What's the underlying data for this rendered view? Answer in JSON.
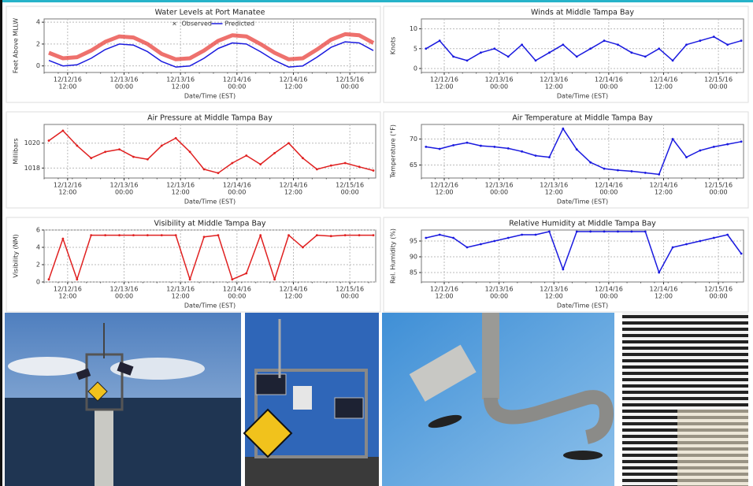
{
  "chart_data": [
    {
      "type": "line",
      "title": "Water Levels at Port Manatee",
      "x_label": "Date/Time (EST)",
      "y_label": "Feet Above MLLW",
      "x": [
        "2016-12-12T08:00",
        "2016-12-12T11:00",
        "2016-12-12T14:00",
        "2016-12-12T17:00",
        "2016-12-12T20:00",
        "2016-12-12T23:00",
        "2016-12-13T02:00",
        "2016-12-13T05:00",
        "2016-12-13T08:00",
        "2016-12-13T11:00",
        "2016-12-13T14:00",
        "2016-12-13T17:00",
        "2016-12-13T20:00",
        "2016-12-13T23:00",
        "2016-12-14T02:00",
        "2016-12-14T05:00",
        "2016-12-14T08:00",
        "2016-12-14T11:00",
        "2016-12-14T14:00",
        "2016-12-14T17:00",
        "2016-12-14T20:00",
        "2016-12-14T23:00",
        "2016-12-15T02:00",
        "2016-12-15T05:00"
      ],
      "series": [
        {
          "name": "Observed",
          "color": "#e8413c",
          "values": [
            1.2,
            0.7,
            0.8,
            1.4,
            2.2,
            2.7,
            2.6,
            2.0,
            1.1,
            0.6,
            0.7,
            1.4,
            2.3,
            2.8,
            2.7,
            2.0,
            1.2,
            0.6,
            0.7,
            1.5,
            2.4,
            2.9,
            2.8,
            2.1
          ]
        },
        {
          "name": "Predicted",
          "color": "#1a1adf",
          "values": [
            0.5,
            0.0,
            0.1,
            0.7,
            1.5,
            2.0,
            1.9,
            1.3,
            0.4,
            -0.1,
            0.0,
            0.7,
            1.6,
            2.1,
            2.0,
            1.3,
            0.5,
            -0.1,
            0.0,
            0.8,
            1.7,
            2.2,
            2.1,
            1.4
          ]
        }
      ],
      "xlim": [
        "2016-12-12T07:00",
        "2016-12-15T05:30"
      ],
      "xticks": [
        {
          "value": "2016-12-12T12:00",
          "label": [
            "12/12/16",
            "12:00"
          ]
        },
        {
          "value": "2016-12-13T00:00",
          "label": [
            "12/13/16",
            "00:00"
          ]
        },
        {
          "value": "2016-12-13T12:00",
          "label": [
            "12/13/16",
            "12:00"
          ]
        },
        {
          "value": "2016-12-14T00:00",
          "label": [
            "12/14/16",
            "00:00"
          ]
        },
        {
          "value": "2016-12-14T12:00",
          "label": [
            "12/14/16",
            "12:00"
          ]
        },
        {
          "value": "2016-12-15T00:00",
          "label": [
            "12/15/16",
            "00:00"
          ]
        }
      ],
      "ylim": [
        -0.6,
        4.3
      ],
      "yticks": [
        0,
        2,
        4
      ],
      "grid": true
    },
    {
      "type": "line",
      "title": "Winds at Middle Tampa Bay",
      "x_label": "Date/Time (EST)",
      "y_label": "Knots",
      "x": [
        "2016-12-12T08:00",
        "2016-12-12T11:00",
        "2016-12-12T14:00",
        "2016-12-12T17:00",
        "2016-12-12T20:00",
        "2016-12-12T23:00",
        "2016-12-13T02:00",
        "2016-12-13T05:00",
        "2016-12-13T08:00",
        "2016-12-13T11:00",
        "2016-12-13T14:00",
        "2016-12-13T17:00",
        "2016-12-13T20:00",
        "2016-12-13T23:00",
        "2016-12-14T02:00",
        "2016-12-14T05:00",
        "2016-12-14T08:00",
        "2016-12-14T11:00",
        "2016-12-14T14:00",
        "2016-12-14T17:00",
        "2016-12-14T20:00",
        "2016-12-14T23:00",
        "2016-12-15T02:00",
        "2016-12-15T05:00"
      ],
      "values": [
        5,
        7,
        3,
        2,
        4,
        5,
        3,
        6,
        2,
        4,
        6,
        3,
        5,
        7,
        6,
        4,
        3,
        5,
        2,
        6,
        7,
        8,
        6,
        7
      ],
      "color": "#1a1adf",
      "xlim": [
        "2016-12-12T07:00",
        "2016-12-15T05:30"
      ],
      "xticks": [
        {
          "value": "2016-12-12T12:00",
          "label": [
            "12/12/16",
            "12:00"
          ]
        },
        {
          "value": "2016-12-13T00:00",
          "label": [
            "12/13/16",
            "00:00"
          ]
        },
        {
          "value": "2016-12-13T12:00",
          "label": [
            "12/13/16",
            "12:00"
          ]
        },
        {
          "value": "2016-12-14T00:00",
          "label": [
            "12/14/16",
            "00:00"
          ]
        },
        {
          "value": "2016-12-14T12:00",
          "label": [
            "12/14/16",
            "12:00"
          ]
        },
        {
          "value": "2016-12-15T00:00",
          "label": [
            "12/15/16",
            "00:00"
          ]
        }
      ],
      "ylim": [
        -1,
        12.5
      ],
      "yticks": [
        0,
        5,
        10
      ],
      "grid": true
    },
    {
      "type": "line",
      "title": "Air Pressure at Middle Tampa Bay",
      "x_label": "Date/Time (EST)",
      "y_label": "Millibars",
      "x": [
        "2016-12-12T08:00",
        "2016-12-12T11:00",
        "2016-12-12T14:00",
        "2016-12-12T17:00",
        "2016-12-12T20:00",
        "2016-12-12T23:00",
        "2016-12-13T02:00",
        "2016-12-13T05:00",
        "2016-12-13T08:00",
        "2016-12-13T11:00",
        "2016-12-13T14:00",
        "2016-12-13T17:00",
        "2016-12-13T20:00",
        "2016-12-13T23:00",
        "2016-12-14T02:00",
        "2016-12-14T05:00",
        "2016-12-14T08:00",
        "2016-12-14T11:00",
        "2016-12-14T14:00",
        "2016-12-14T17:00",
        "2016-12-14T20:00",
        "2016-12-14T23:00",
        "2016-12-15T02:00",
        "2016-12-15T05:00"
      ],
      "values": [
        1020.2,
        1021.0,
        1019.8,
        1018.8,
        1019.3,
        1019.5,
        1018.9,
        1018.7,
        1019.8,
        1020.4,
        1019.3,
        1017.9,
        1017.6,
        1018.4,
        1019.0,
        1018.3,
        1019.2,
        1020.0,
        1018.8,
        1017.9,
        1018.2,
        1018.4,
        1018.1,
        1017.8
      ],
      "color": "#e02020",
      "xlim": [
        "2016-12-12T07:00",
        "2016-12-15T05:30"
      ],
      "xticks": [
        {
          "value": "2016-12-12T12:00",
          "label": [
            "12/12/16",
            "12:00"
          ]
        },
        {
          "value": "2016-12-13T00:00",
          "label": [
            "12/13/16",
            "00:00"
          ]
        },
        {
          "value": "2016-12-13T12:00",
          "label": [
            "12/13/16",
            "12:00"
          ]
        },
        {
          "value": "2016-12-14T00:00",
          "label": [
            "12/14/16",
            "00:00"
          ]
        },
        {
          "value": "2016-12-14T12:00",
          "label": [
            "12/14/16",
            "12:00"
          ]
        },
        {
          "value": "2016-12-15T00:00",
          "label": [
            "12/15/16",
            "00:00"
          ]
        }
      ],
      "ylim": [
        1017.2,
        1021.5
      ],
      "yticks": [
        1018,
        1020
      ],
      "grid": true
    },
    {
      "type": "line",
      "title": "Air Temperature at Middle Tampa Bay",
      "x_label": "Date/Time (EST)",
      "y_label": "Temperature (°F)",
      "x": [
        "2016-12-12T08:00",
        "2016-12-12T11:00",
        "2016-12-12T14:00",
        "2016-12-12T17:00",
        "2016-12-12T20:00",
        "2016-12-12T23:00",
        "2016-12-13T02:00",
        "2016-12-13T05:00",
        "2016-12-13T08:00",
        "2016-12-13T11:00",
        "2016-12-13T14:00",
        "2016-12-13T17:00",
        "2016-12-13T20:00",
        "2016-12-13T23:00",
        "2016-12-14T02:00",
        "2016-12-14T05:00",
        "2016-12-14T08:00",
        "2016-12-14T11:00",
        "2016-12-14T14:00",
        "2016-12-14T17:00",
        "2016-12-14T20:00",
        "2016-12-14T23:00",
        "2016-12-15T02:00",
        "2016-12-15T05:00"
      ],
      "values": [
        68.5,
        68.1,
        68.8,
        69.3,
        68.7,
        68.5,
        68.2,
        67.6,
        66.8,
        66.5,
        72.0,
        68.0,
        65.5,
        64.3,
        64.0,
        63.8,
        63.5,
        63.2,
        70.0,
        66.5,
        67.8,
        68.5,
        69.0,
        69.5
      ],
      "color": "#1a1adf",
      "xlim": [
        "2016-12-12T07:00",
        "2016-12-15T05:30"
      ],
      "xticks": [
        {
          "value": "2016-12-12T12:00",
          "label": [
            "12/12/16",
            "12:00"
          ]
        },
        {
          "value": "2016-12-13T00:00",
          "label": [
            "12/13/16",
            "00:00"
          ]
        },
        {
          "value": "2016-12-13T12:00",
          "label": [
            "12/13/16",
            "12:00"
          ]
        },
        {
          "value": "2016-12-14T00:00",
          "label": [
            "12/14/16",
            "00:00"
          ]
        },
        {
          "value": "2016-12-14T12:00",
          "label": [
            "12/14/16",
            "12:00"
          ]
        },
        {
          "value": "2016-12-15T00:00",
          "label": [
            "12/15/16",
            "00:00"
          ]
        }
      ],
      "ylim": [
        62.5,
        72.8
      ],
      "yticks": [
        65,
        70
      ],
      "grid": true
    },
    {
      "type": "line",
      "title": "Visibility at Middle Tampa Bay",
      "x_label": "Date/Time (EST)",
      "y_label": "Visibility (NM)",
      "x": [
        "2016-12-12T08:00",
        "2016-12-12T11:00",
        "2016-12-12T14:00",
        "2016-12-12T17:00",
        "2016-12-12T20:00",
        "2016-12-12T23:00",
        "2016-12-13T02:00",
        "2016-12-13T05:00",
        "2016-12-13T08:00",
        "2016-12-13T11:00",
        "2016-12-13T14:00",
        "2016-12-13T17:00",
        "2016-12-13T20:00",
        "2016-12-13T23:00",
        "2016-12-14T02:00",
        "2016-12-14T05:00",
        "2016-12-14T08:00",
        "2016-12-14T11:00",
        "2016-12-14T14:00",
        "2016-12-14T17:00",
        "2016-12-14T20:00",
        "2016-12-14T23:00",
        "2016-12-15T02:00",
        "2016-12-15T05:00"
      ],
      "values": [
        0.3,
        5.0,
        0.3,
        5.4,
        5.4,
        5.4,
        5.4,
        5.4,
        5.4,
        5.4,
        0.3,
        5.2,
        5.4,
        0.3,
        1.0,
        5.4,
        0.3,
        5.4,
        4.0,
        5.4,
        5.3,
        5.4,
        5.4,
        5.4
      ],
      "color": "#e02020",
      "xlim": [
        "2016-12-12T07:00",
        "2016-12-15T05:30"
      ],
      "xticks": [
        {
          "value": "2016-12-12T12:00",
          "label": [
            "12/12/16",
            "12:00"
          ]
        },
        {
          "value": "2016-12-13T00:00",
          "label": [
            "12/13/16",
            "00:00"
          ]
        },
        {
          "value": "2016-12-13T12:00",
          "label": [
            "12/13/16",
            "12:00"
          ]
        },
        {
          "value": "2016-12-14T00:00",
          "label": [
            "12/14/16",
            "00:00"
          ]
        },
        {
          "value": "2016-12-14T12:00",
          "label": [
            "12/14/16",
            "12:00"
          ]
        },
        {
          "value": "2016-12-15T00:00",
          "label": [
            "12/15/16",
            "00:00"
          ]
        }
      ],
      "ylim": [
        0,
        6
      ],
      "yticks": [
        0,
        2,
        4,
        6
      ],
      "grid": true
    },
    {
      "type": "line",
      "title": "Relative Humidity at Middle Tampa Bay",
      "x_label": "Date/Time (EST)",
      "y_label": "Rel. Humidity (%)",
      "x": [
        "2016-12-12T08:00",
        "2016-12-12T11:00",
        "2016-12-12T14:00",
        "2016-12-12T17:00",
        "2016-12-12T20:00",
        "2016-12-12T23:00",
        "2016-12-13T02:00",
        "2016-12-13T05:00",
        "2016-12-13T08:00",
        "2016-12-13T11:00",
        "2016-12-13T14:00",
        "2016-12-13T17:00",
        "2016-12-13T20:00",
        "2016-12-13T23:00",
        "2016-12-14T02:00",
        "2016-12-14T05:00",
        "2016-12-14T08:00",
        "2016-12-14T11:00",
        "2016-12-14T14:00",
        "2016-12-14T17:00",
        "2016-12-14T20:00",
        "2016-12-14T23:00",
        "2016-12-15T02:00",
        "2016-12-15T05:00"
      ],
      "values": [
        96,
        97,
        96,
        93,
        94,
        95,
        96,
        97,
        97,
        98,
        86,
        98,
        98,
        98,
        98,
        98,
        98,
        85,
        93,
        94,
        95,
        96,
        97,
        91
      ],
      "color": "#1a1adf",
      "xlim": [
        "2016-12-12T07:00",
        "2016-12-15T05:30"
      ],
      "xticks": [
        {
          "value": "2016-12-12T12:00",
          "label": [
            "12/12/16",
            "12:00"
          ]
        },
        {
          "value": "2016-12-13T00:00",
          "label": [
            "12/13/16",
            "00:00"
          ]
        },
        {
          "value": "2016-12-13T12:00",
          "label": [
            "12/13/16",
            "12:00"
          ]
        },
        {
          "value": "2016-12-14T00:00",
          "label": [
            "12/14/16",
            "00:00"
          ]
        },
        {
          "value": "2016-12-14T12:00",
          "label": [
            "12/14/16",
            "12:00"
          ]
        },
        {
          "value": "2016-12-15T00:00",
          "label": [
            "12/15/16",
            "00:00"
          ]
        }
      ],
      "ylim": [
        82,
        98.5
      ],
      "yticks": [
        85,
        90,
        95
      ],
      "grid": true
    }
  ]
}
